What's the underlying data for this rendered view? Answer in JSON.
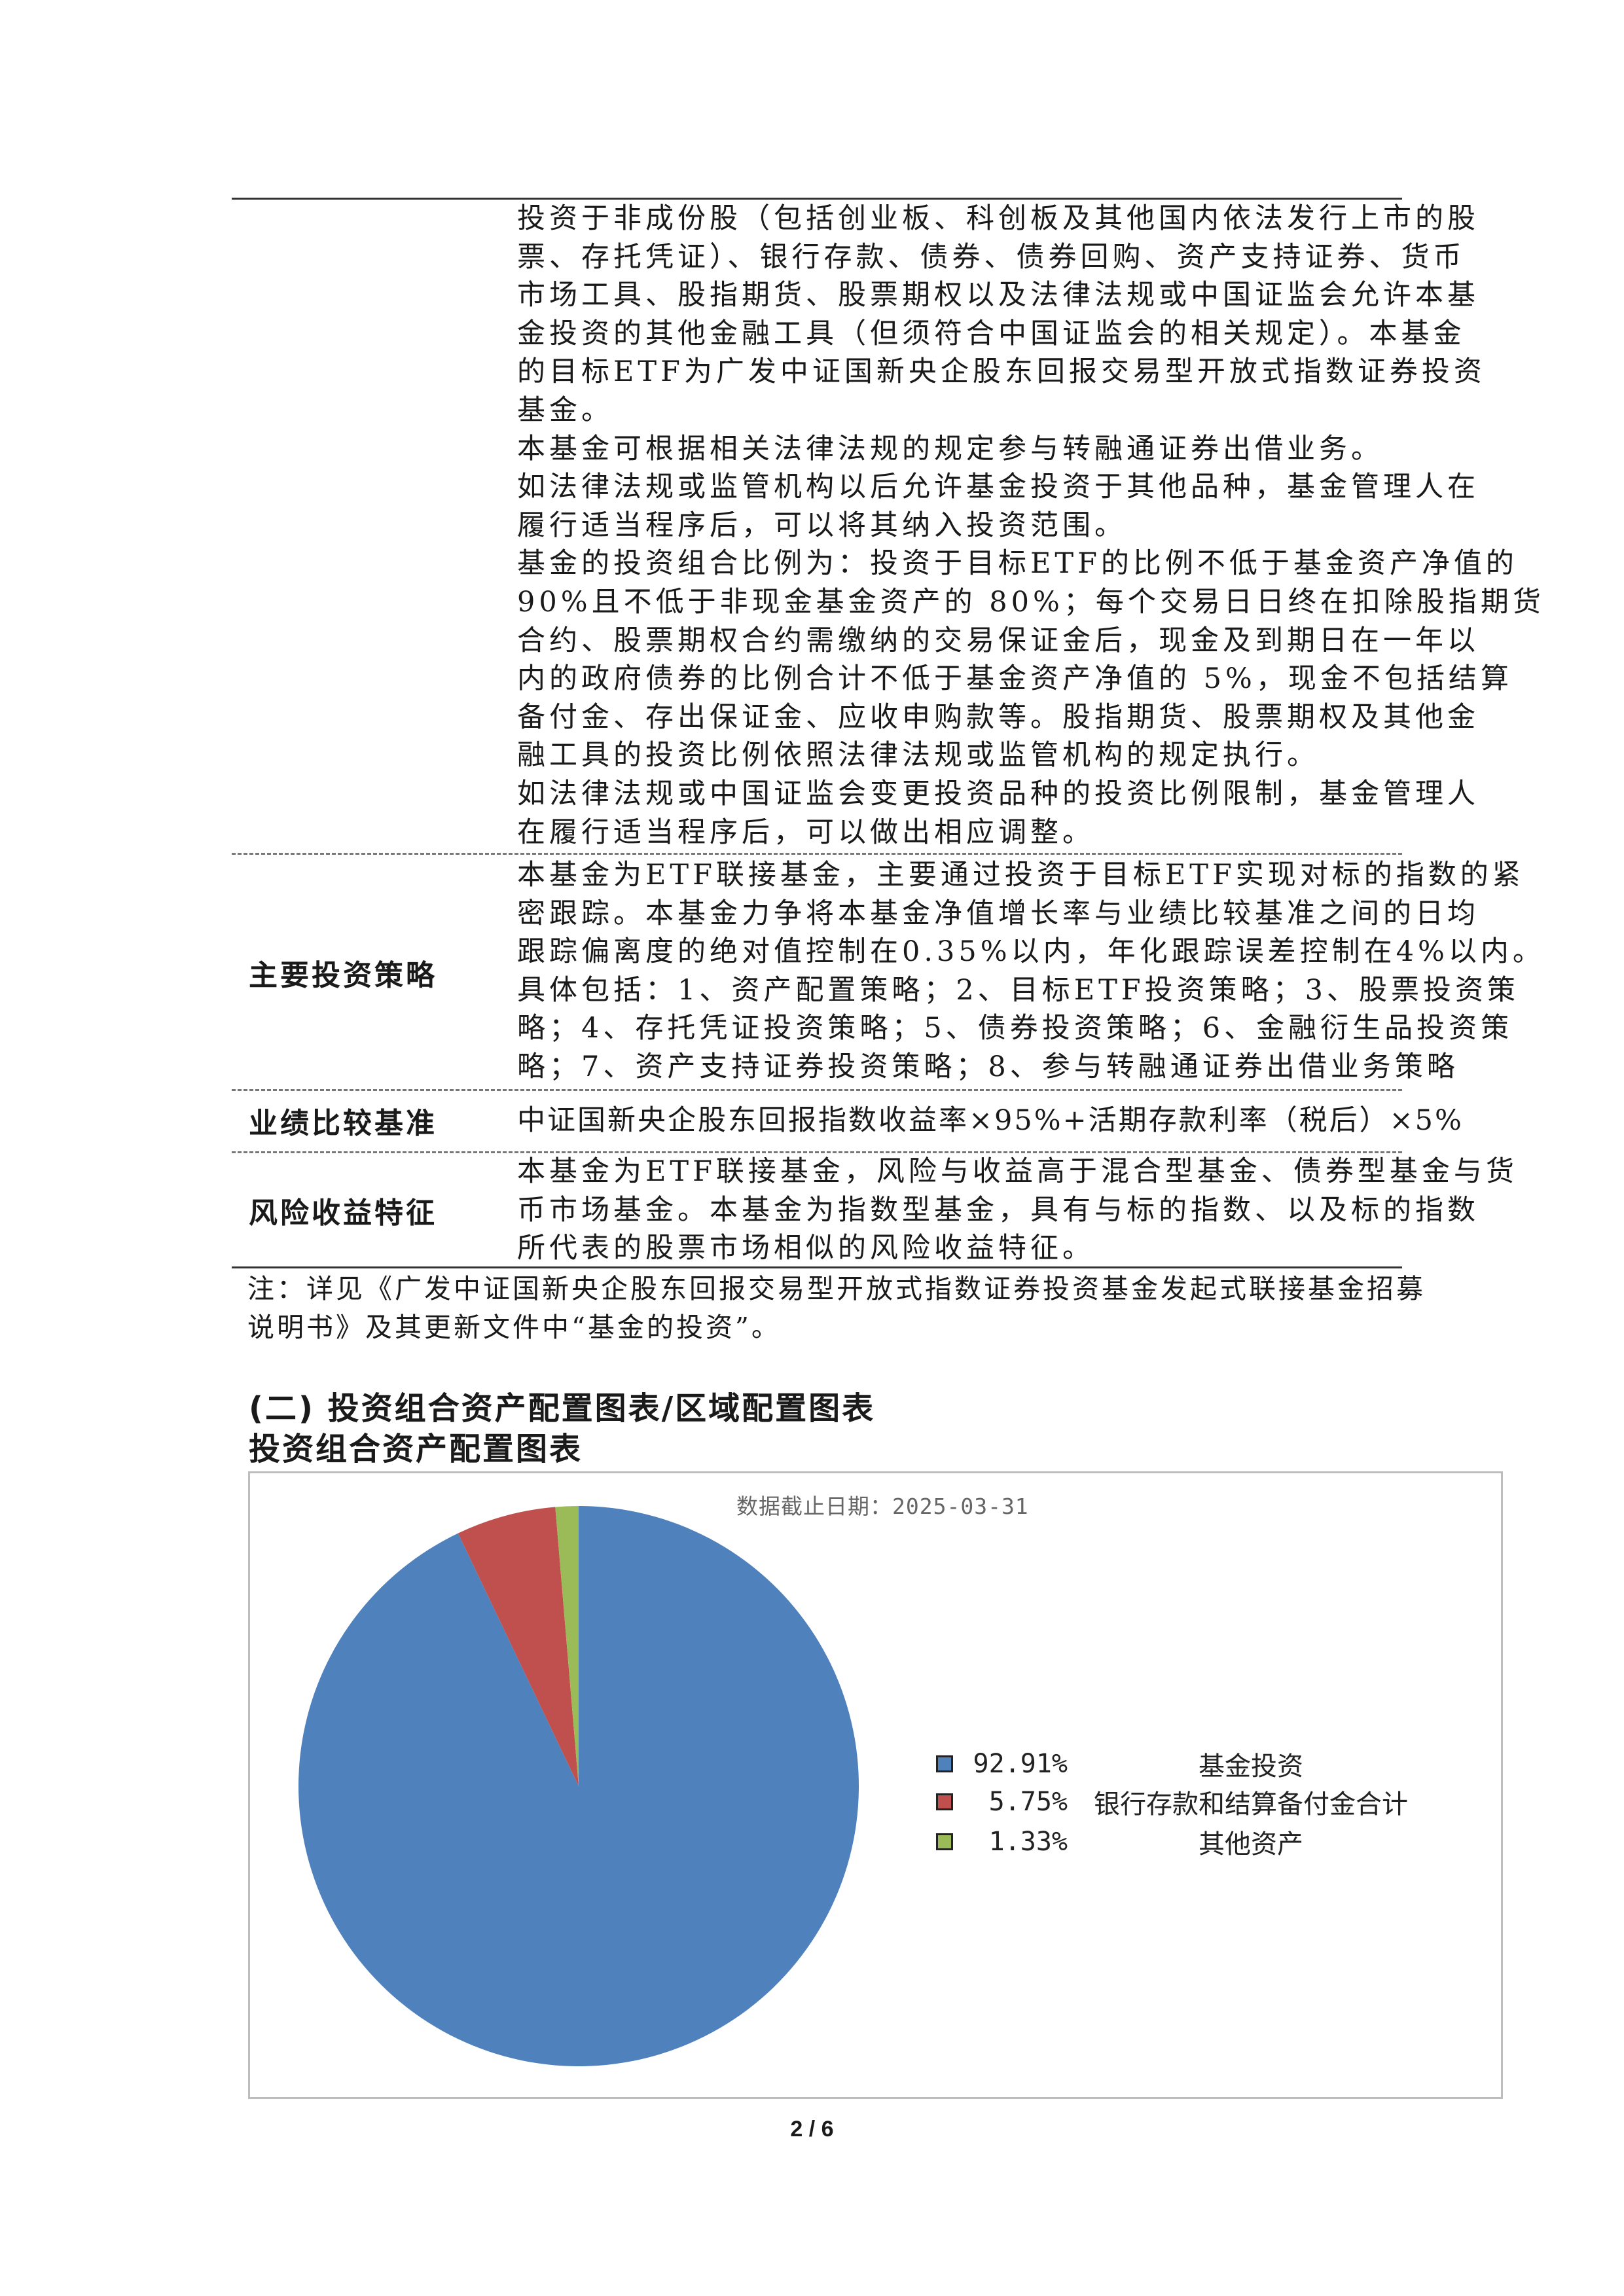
{
  "table": {
    "scope_lines": [
      "投资于非成份股（包括创业板、科创板及其他国内依法发行上市的股",
      "票、存托凭证）、银行存款、债券、债券回购、资产支持证券、货币",
      "市场工具、股指期货、股票期权以及法律法规或中国证监会允许本基",
      "金投资的其他金融工具（但须符合中国证监会的相关规定）。本基金",
      "的目标ETF为广发中证国新央企股东回报交易型开放式指数证券投资",
      "基金。",
      "本基金可根据相关法律法规的规定参与转融通证券出借业务。",
      "如法律法规或监管机构以后允许基金投资于其他品种，基金管理人在",
      "履行适当程序后，可以将其纳入投资范围。",
      "基金的投资组合比例为：投资于目标ETF的比例不低于基金资产净值的",
      "90%且不低于非现金基金资产的 80%；每个交易日日终在扣除股指期货",
      "合约、股票期权合约需缴纳的交易保证金后，现金及到期日在一年以",
      "内的政府债券的比例合计不低于基金资产净值的 5%，现金不包括结算",
      "备付金、存出保证金、应收申购款等。股指期货、股票期权及其他金",
      "融工具的投资比例依照法律法规或监管机构的规定执行。",
      "如法律法规或中国证监会变更投资品种的投资比例限制，基金管理人",
      "在履行适当程序后，可以做出相应调整。"
    ],
    "strategy_label": "主要投资策略",
    "strategy_lines": [
      "本基金为ETF联接基金，主要通过投资于目标ETF实现对标的指数的紧",
      "密跟踪。本基金力争将本基金净值增长率与业绩比较基准之间的日均",
      "跟踪偏离度的绝对值控制在0.35%以内，年化跟踪误差控制在4%以内。",
      "具体包括：1、资产配置策略；2、目标ETF投资策略；3、股票投资策",
      "略；4、存托凭证投资策略；5、债券投资策略；6、金融衍生品投资策",
      "略；7、资产支持证券投资策略；8、参与转融通证券出借业务策略"
    ],
    "benchmark_label": "业绩比较基准",
    "benchmark_text": "中证国新央企股东回报指数收益率×95%+活期存款利率（税后）×5%",
    "risk_label": "风险收益特征",
    "risk_lines": [
      "本基金为ETF联接基金，风险与收益高于混合型基金、债券型基金与货",
      "币市场基金。本基金为指数型基金，具有与标的指数、以及标的指数",
      "所代表的股票市场相似的风险收益特征。"
    ]
  },
  "note_lines": [
    "注：详见《广发中证国新央企股东回报交易型开放式指数证券投资基金发起式联接基金招募",
    "说明书》及其更新文件中“基金的投资”。"
  ],
  "section_heading": "(二) 投资组合资产配置图表/区域配置图表",
  "chart_heading": "投资组合资产配置图表",
  "chart_data": {
    "type": "pie",
    "subtitle": "数据截止日期：2025-03-31",
    "legend_position": "right",
    "slices": [
      {
        "name": "基金投资",
        "value": 92.91,
        "label": "92.91%",
        "color": "#4f81bd"
      },
      {
        "name": "银行存款和结算备付金合计",
        "value": 5.75,
        "label": "5.75%",
        "color": "#c0504d"
      },
      {
        "name": "其他资产",
        "value": 1.33,
        "label": "1.33%",
        "color": "#9bbb59"
      }
    ]
  },
  "page_number": "2 / 6"
}
